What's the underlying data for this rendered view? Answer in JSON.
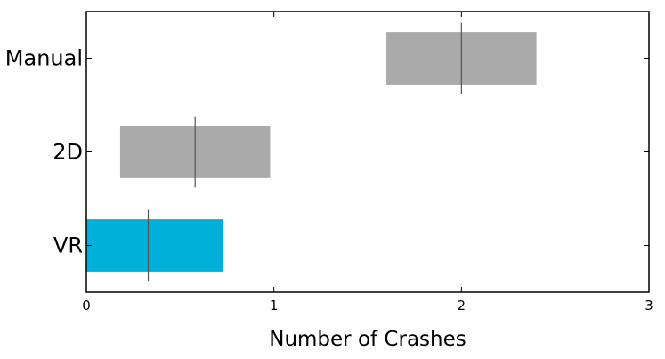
{
  "chart_data": {
    "type": "box",
    "orientation": "horizontal",
    "categories": [
      "VR",
      "2D",
      "Manual"
    ],
    "boxes": [
      {
        "label": "VR",
        "low": 0.0,
        "high": 0.73,
        "median": 0.33,
        "whisker_low": 0.33,
        "whisker_high": 0.33,
        "color": "#00B0DA"
      },
      {
        "label": "2D",
        "low": 0.18,
        "high": 0.98,
        "median": 0.58,
        "whisker_low": 0.58,
        "whisker_high": 0.58,
        "color": "#AAAAAA"
      },
      {
        "label": "Manual",
        "low": 1.6,
        "high": 2.4,
        "median": 2.0,
        "whisker_low": 2.0,
        "whisker_high": 2.0,
        "color": "#AAAAAA"
      }
    ],
    "title": "",
    "xlabel": "Number of Crashes",
    "ylabel": "",
    "xlim": [
      0,
      3
    ],
    "xticks": [
      0,
      1,
      2,
      3
    ],
    "grid": false,
    "legend": "none"
  }
}
